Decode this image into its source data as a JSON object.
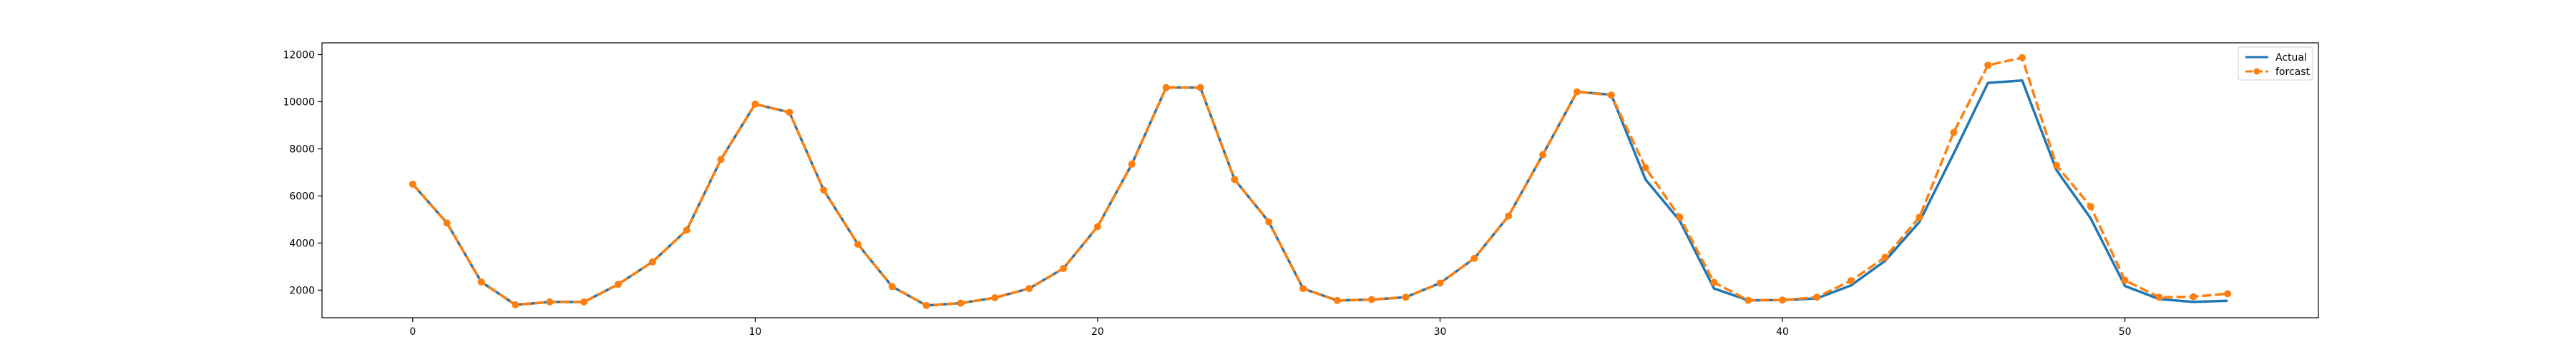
{
  "chart_data": {
    "type": "line",
    "title": "",
    "xlabel": "",
    "ylabel": "",
    "xlim": [
      -2.65,
      55.65
    ],
    "ylim": [
      830,
      12500
    ],
    "x_ticks": [
      0,
      10,
      20,
      30,
      40,
      50
    ],
    "y_ticks": [
      2000,
      4000,
      6000,
      8000,
      10000,
      12000
    ],
    "x": [
      0,
      1,
      2,
      3,
      4,
      5,
      6,
      7,
      8,
      9,
      10,
      11,
      12,
      13,
      14,
      15,
      16,
      17,
      18,
      19,
      20,
      21,
      22,
      23,
      24,
      25,
      26,
      27,
      28,
      29,
      30,
      31,
      32,
      33,
      34,
      35,
      36,
      37,
      38,
      39,
      40,
      41,
      42,
      43,
      44,
      45,
      46,
      47,
      48,
      49,
      50,
      51,
      52,
      53
    ],
    "series": [
      {
        "name": "Actual",
        "color": "#1f77b4",
        "style": "solid",
        "values": [
          6500,
          4850,
          2350,
          1380,
          1500,
          1500,
          2250,
          3200,
          4550,
          7550,
          9900,
          9550,
          6250,
          3950,
          2150,
          1350,
          1450,
          1680,
          2070,
          2920,
          4700,
          7350,
          10600,
          10600,
          6700,
          4900,
          2070,
          1560,
          1600,
          1700,
          2300,
          3350,
          5150,
          7750,
          10420,
          10300,
          6700,
          4950,
          2070,
          1570,
          1580,
          1650,
          2200,
          3250,
          4900,
          7800,
          10800,
          10900,
          7100,
          5050,
          2180,
          1620,
          1500,
          1550
        ]
      },
      {
        "name": "forcast",
        "color": "#ff7f0e",
        "style": "dashed",
        "marker": "circle",
        "values": [
          6500,
          4850,
          2350,
          1380,
          1500,
          1500,
          2250,
          3200,
          4550,
          7550,
          9900,
          9550,
          6250,
          3950,
          2150,
          1350,
          1450,
          1680,
          2070,
          2920,
          4700,
          7350,
          10600,
          10600,
          6700,
          4900,
          2070,
          1560,
          1600,
          1700,
          2300,
          3350,
          5150,
          7750,
          10420,
          10280,
          7200,
          5100,
          2330,
          1570,
          1580,
          1700,
          2400,
          3400,
          5100,
          8700,
          11550,
          11870,
          7300,
          5550,
          2420,
          1700,
          1720,
          1850
        ]
      }
    ],
    "legend": {
      "position": "top-right"
    },
    "grid": false
  }
}
